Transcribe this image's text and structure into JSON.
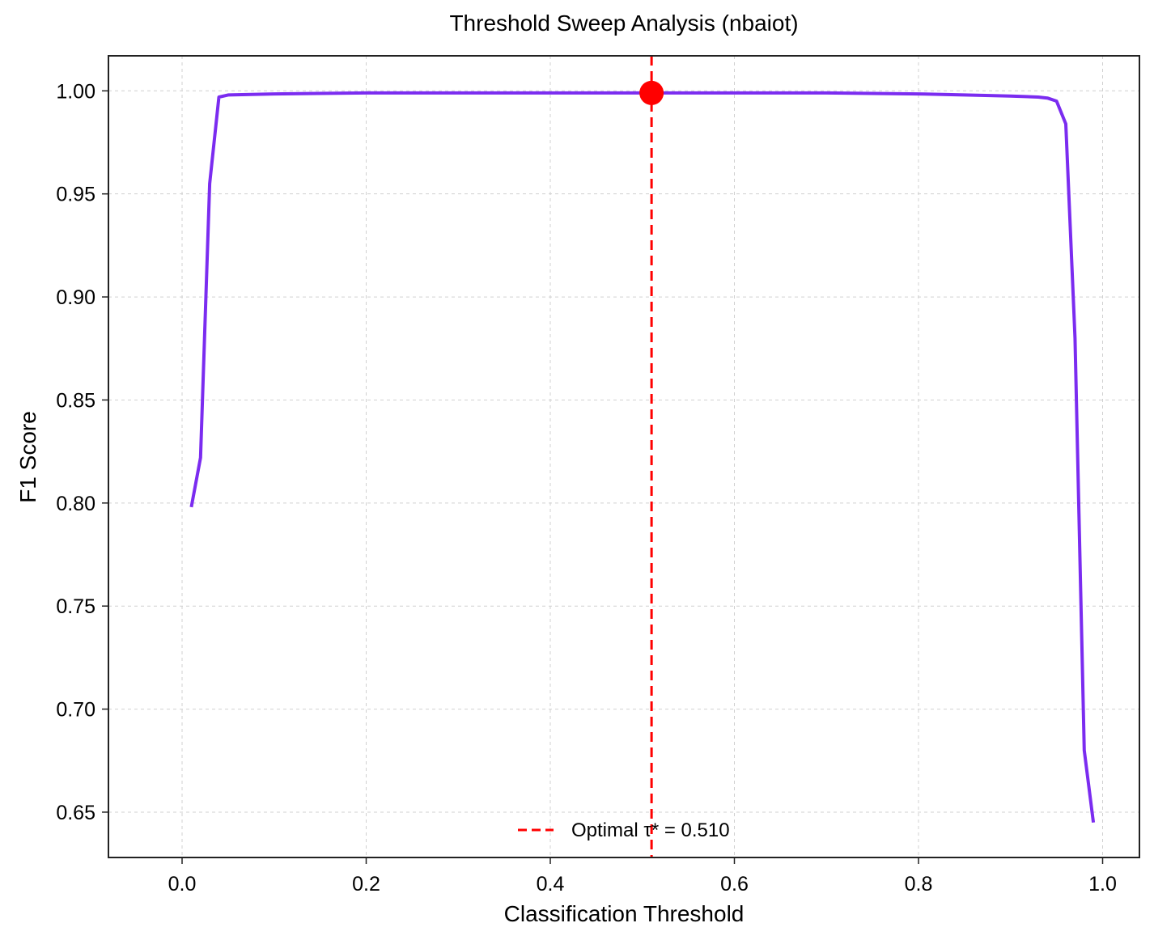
{
  "chart_data": {
    "type": "line",
    "title": "Threshold Sweep Analysis (nbaiot)",
    "xlabel": "Classification Threshold",
    "ylabel": "F1 Score",
    "xlim": [
      -0.08,
      1.04
    ],
    "ylim": [
      0.628,
      1.017
    ],
    "xticks": [
      0.0,
      0.2,
      0.4,
      0.6,
      0.8,
      1.0
    ],
    "xtick_labels": [
      "0.0",
      "0.2",
      "0.4",
      "0.6",
      "0.8",
      "1.0"
    ],
    "yticks": [
      0.65,
      0.7,
      0.75,
      0.8,
      0.85,
      0.9,
      0.95,
      1.0
    ],
    "ytick_labels": [
      "0.65",
      "0.70",
      "0.75",
      "0.80",
      "0.85",
      "0.90",
      "0.95",
      "1.00"
    ],
    "grid": true,
    "legend_position": "bottom-center",
    "series": [
      {
        "color": "#7b2cf0",
        "x": [
          0.01,
          0.02,
          0.03,
          0.04,
          0.05,
          0.1,
          0.2,
          0.3,
          0.4,
          0.5,
          0.6,
          0.7,
          0.8,
          0.85,
          0.9,
          0.93,
          0.94,
          0.95,
          0.96,
          0.97,
          0.98,
          0.99
        ],
        "y": [
          0.798,
          0.822,
          0.955,
          0.997,
          0.998,
          0.9985,
          0.999,
          0.999,
          0.999,
          0.999,
          0.999,
          0.999,
          0.9985,
          0.998,
          0.9975,
          0.997,
          0.9965,
          0.995,
          0.984,
          0.88,
          0.68,
          0.645
        ]
      }
    ],
    "optimal_point": {
      "x": 0.51,
      "y": 0.999,
      "color": "#ff0000"
    },
    "reference_line": {
      "x": 0.51,
      "color": "#ff0000",
      "style": "dashed",
      "label": "Optimal τ* = 0.510"
    }
  }
}
